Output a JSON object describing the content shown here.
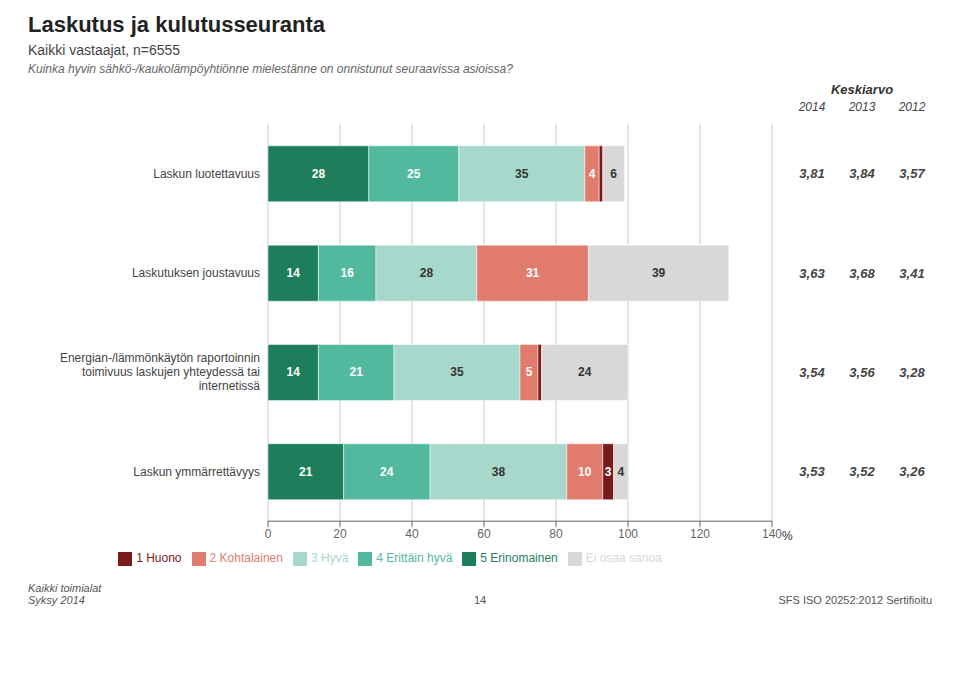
{
  "chart_data": {
    "type": "bar",
    "title": "Laskutus ja kulutusseuranta",
    "subtitle": "Kaikki vastaajat, n=6555",
    "question": "Kuinka hyvin sähkö-/kaukolämpöyhtiönne mielestänne on onnistunut seuraavissa asioissa?",
    "orientation": "horizontal",
    "stacked": true,
    "data_labels": true,
    "grid": true,
    "legend": "bottom",
    "xlabel": "%",
    "categories": [
      "Laskun luotettavuus",
      "Laskutuksen joustavuus",
      "Energian-/lämmönkäytön raportoinnin\ntoimivuus laskujen yhteydessä tai\ninternetissä",
      "Laskun ymmärrettävyys"
    ],
    "series": [
      {
        "name": "5 Erinomainen",
        "color": "#1e7d5a",
        "values": [
          28,
          14,
          14,
          21
        ]
      },
      {
        "name": "4 Erittäin hyvä",
        "color": "#52b99e",
        "values": [
          25,
          16,
          21,
          24
        ]
      },
      {
        "name": "3 Hyvä",
        "color": "#a8d8cc",
        "values": [
          35,
          28,
          35,
          38
        ]
      },
      {
        "name": "2 Kohtalainen",
        "color": "#e07b6e",
        "values": [
          4,
          31,
          5,
          10
        ]
      },
      {
        "name": "1 Huono",
        "color": "#7a1a1a",
        "values": [
          1,
          0,
          1,
          3
        ],
        "value_labels": [
          null,
          null,
          null,
          "3"
        ]
      },
      {
        "name": "Ei osaa sanoa",
        "color": "#d8d8d8",
        "values": [
          6,
          39,
          24,
          4
        ]
      }
    ],
    "xlim": [
      0,
      140
    ],
    "xticks": [
      0,
      20,
      40,
      60,
      80,
      100,
      120,
      140
    ],
    "keskiarvo": {
      "title": "Keskiarvo",
      "columns": [
        "2014",
        "2013",
        "2012"
      ],
      "values": [
        [
          {
            "value": 3.81,
            "label": "3,81"
          },
          {
            "value": 3.84,
            "label": "3,84"
          },
          {
            "value": 3.57,
            "label": "3,57"
          }
        ],
        [
          {
            "value": 3.63,
            "label": "3,63"
          },
          {
            "value": 3.68,
            "label": "3,68"
          },
          {
            "value": 3.41,
            "label": "3,41"
          }
        ],
        [
          {
            "value": 3.54,
            "label": "3,54"
          },
          {
            "value": 3.56,
            "label": "3,56"
          },
          {
            "value": 3.28,
            "label": "3,28"
          }
        ],
        [
          {
            "value": 3.53,
            "label": "3,53"
          },
          {
            "value": 3.52,
            "label": "3,52"
          },
          {
            "value": 3.26,
            "label": "3,26"
          }
        ]
      ]
    },
    "footer": [
      "Kaikki toimialat\nSyksy 2014",
      "14",
      "SFS ISO 20252:2012 Sertifioitu"
    ]
  }
}
